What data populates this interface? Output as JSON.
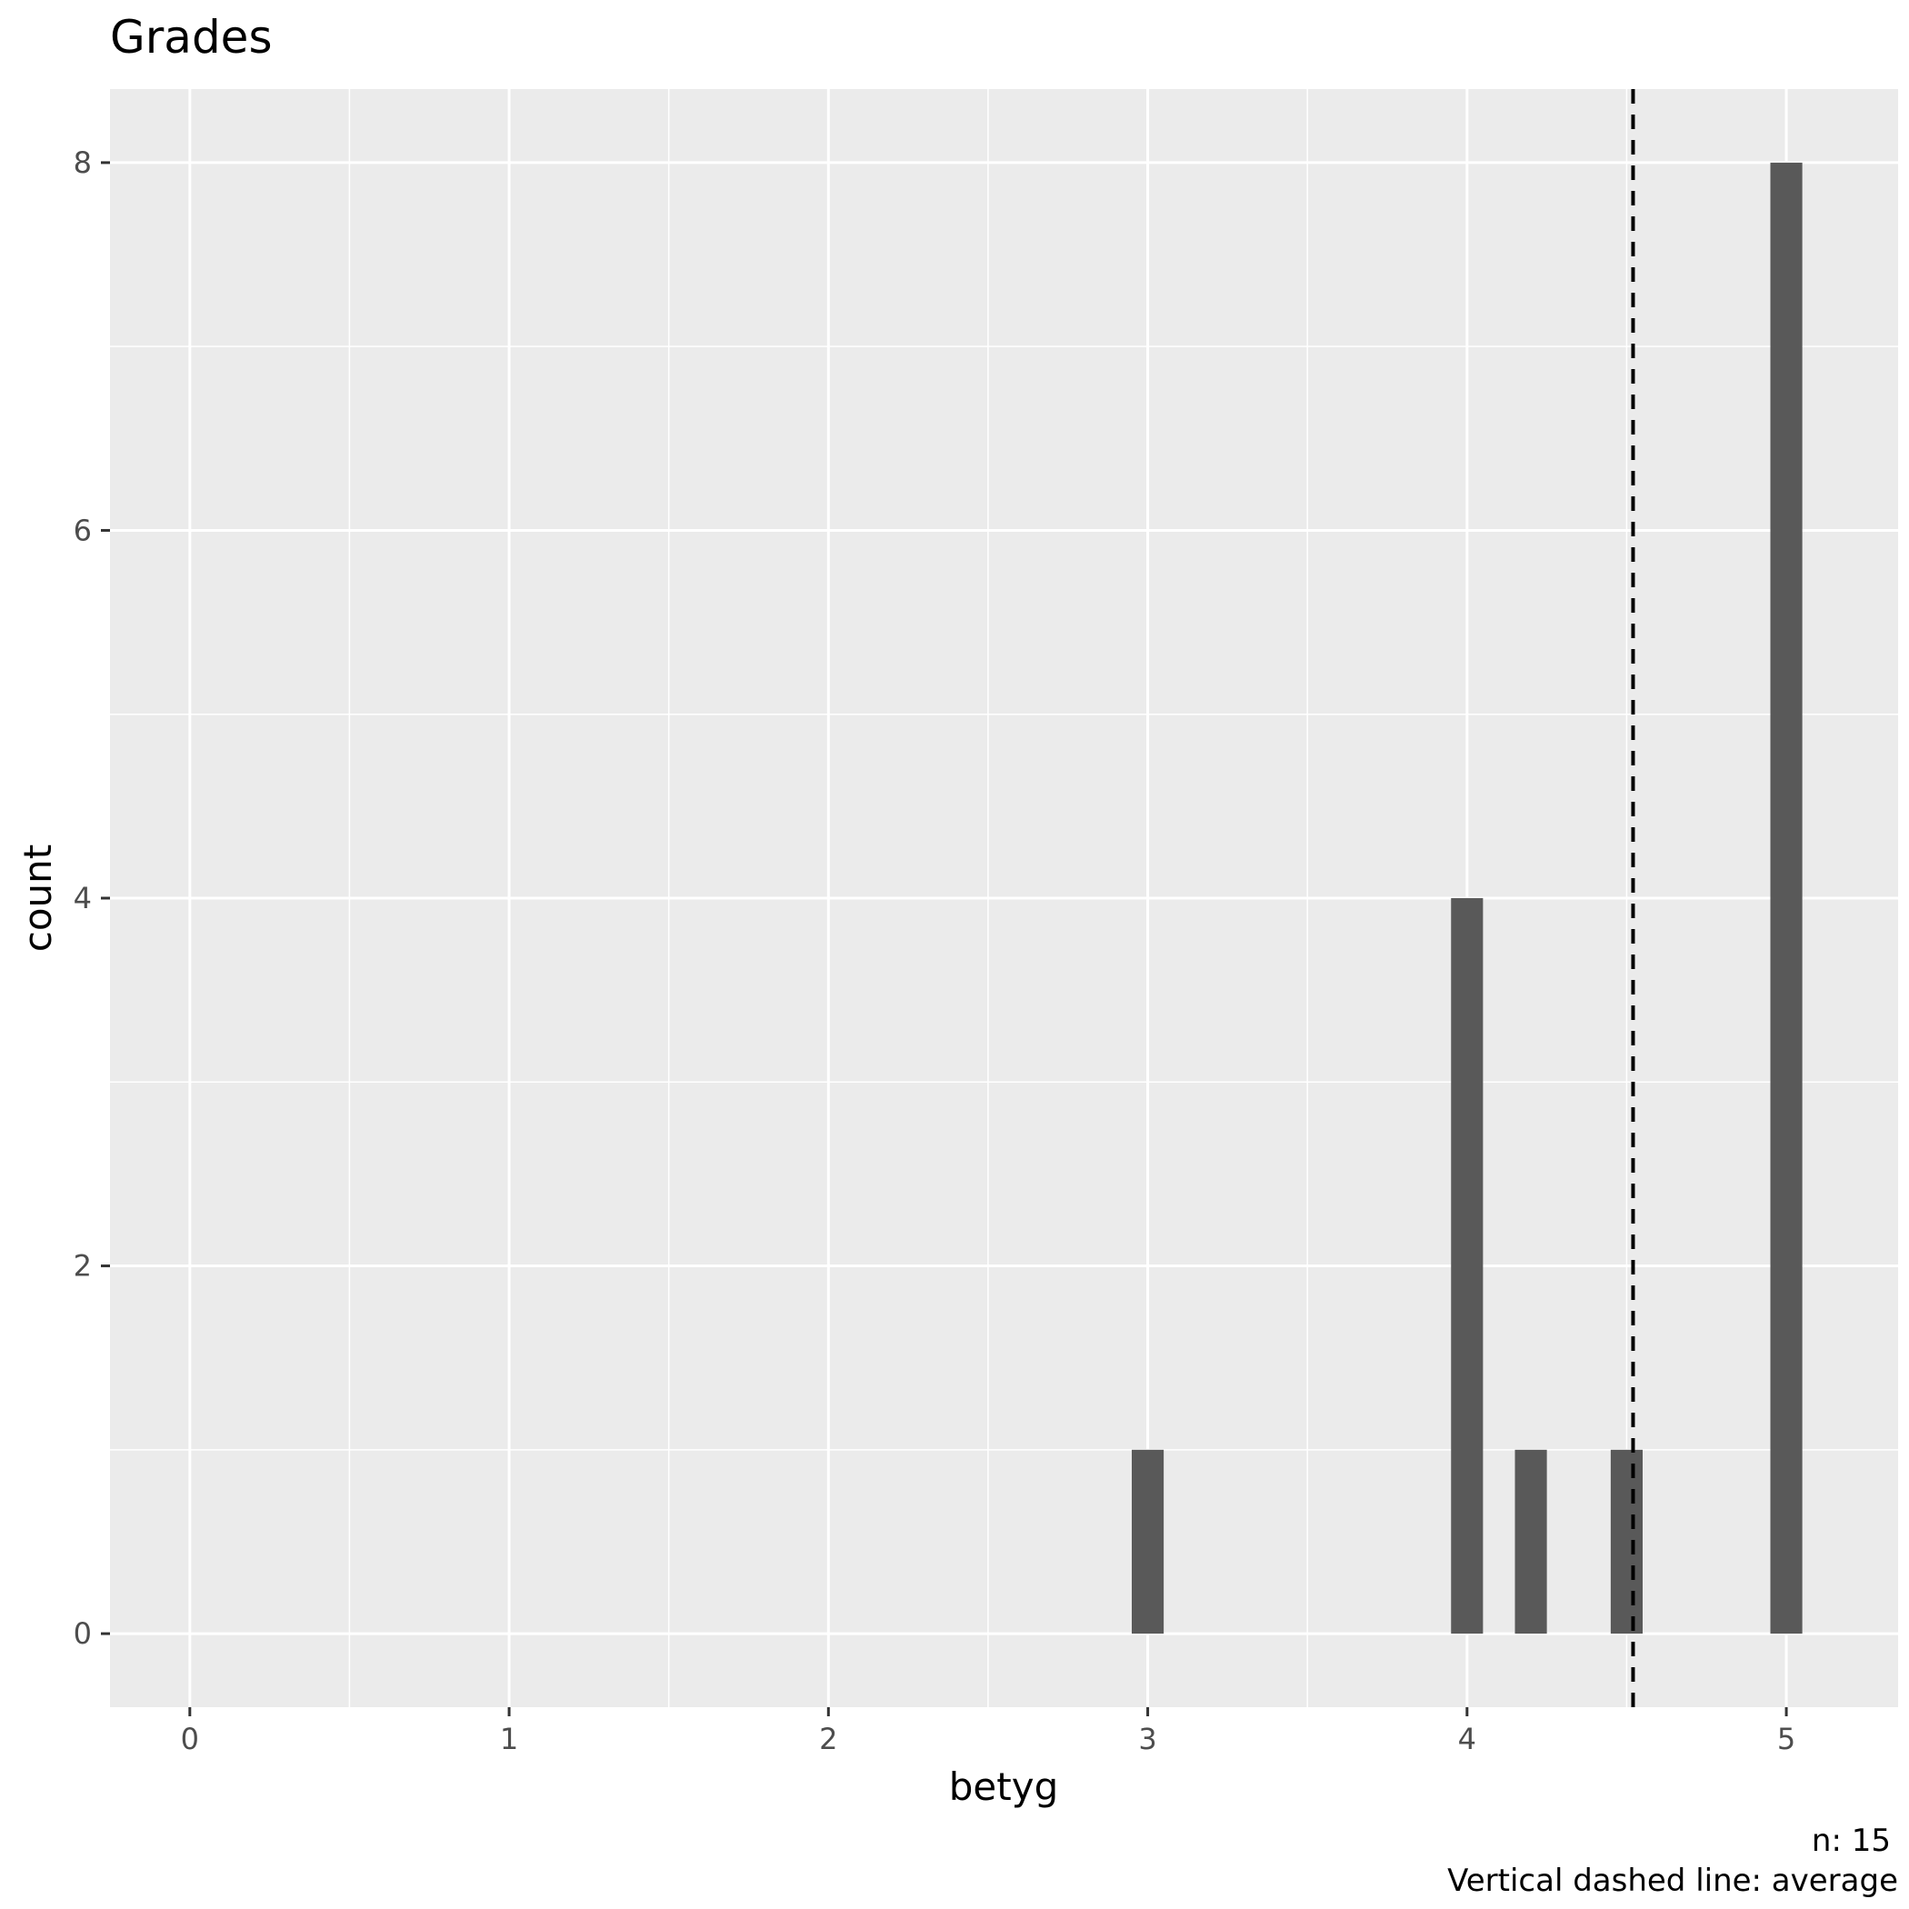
{
  "chart_data": {
    "type": "bar",
    "title": "Grades",
    "xlabel": "betyg",
    "ylabel": "count",
    "caption_lines": [
      "n: 15",
      "Vertical dashed line: average"
    ],
    "bars": [
      {
        "x": 3.0,
        "count": 1
      },
      {
        "x": 4.0,
        "count": 4
      },
      {
        "x": 4.2,
        "count": 1
      },
      {
        "x": 4.5,
        "count": 1
      },
      {
        "x": 5.0,
        "count": 8
      }
    ],
    "bin_width": 0.1,
    "average": 4.52,
    "xlim": [
      -0.25,
      5.35
    ],
    "ylim": [
      -0.4,
      8.4
    ],
    "x_ticks": [
      0,
      1,
      2,
      3,
      4,
      5
    ],
    "y_ticks": [
      0,
      2,
      4,
      6,
      8
    ],
    "grid": true,
    "panel_color": "#ebebeb",
    "bar_color": "#595959",
    "average_line_color": "#000000"
  }
}
